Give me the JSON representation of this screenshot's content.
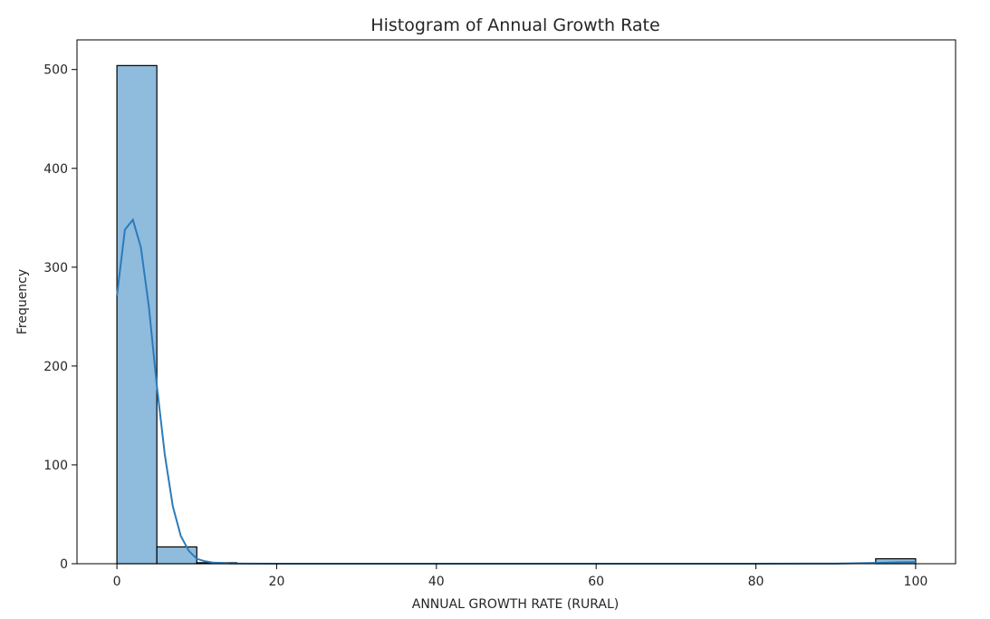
{
  "chart_data": {
    "type": "bar",
    "title": "Histogram of Annual Growth Rate",
    "xlabel": "ANNUAL GROWTH RATE (RURAL)",
    "ylabel": "Frequency",
    "xlim": [
      -5,
      105
    ],
    "ylim": [
      0,
      530
    ],
    "x_ticks": [
      "0",
      "20",
      "40",
      "60",
      "80",
      "100"
    ],
    "y_ticks": [
      "0",
      "100",
      "200",
      "300",
      "400",
      "500"
    ],
    "bins": [
      {
        "start": 0,
        "end": 5,
        "count": 504
      },
      {
        "start": 5,
        "end": 10,
        "count": 17
      },
      {
        "start": 10,
        "end": 15,
        "count": 1
      },
      {
        "start": 15,
        "end": 20,
        "count": 0
      },
      {
        "start": 20,
        "end": 25,
        "count": 0
      },
      {
        "start": 25,
        "end": 30,
        "count": 0
      },
      {
        "start": 30,
        "end": 35,
        "count": 0
      },
      {
        "start": 35,
        "end": 40,
        "count": 0
      },
      {
        "start": 40,
        "end": 45,
        "count": 0
      },
      {
        "start": 45,
        "end": 50,
        "count": 0
      },
      {
        "start": 50,
        "end": 55,
        "count": 0
      },
      {
        "start": 55,
        "end": 60,
        "count": 0
      },
      {
        "start": 60,
        "end": 65,
        "count": 0
      },
      {
        "start": 65,
        "end": 70,
        "count": 0
      },
      {
        "start": 70,
        "end": 75,
        "count": 0
      },
      {
        "start": 75,
        "end": 80,
        "count": 0
      },
      {
        "start": 80,
        "end": 85,
        "count": 0
      },
      {
        "start": 85,
        "end": 90,
        "count": 0
      },
      {
        "start": 90,
        "end": 95,
        "count": 0
      },
      {
        "start": 95,
        "end": 100,
        "count": 5
      }
    ],
    "kde": {
      "x": [
        0,
        1,
        2,
        3,
        4,
        5,
        6,
        7,
        8,
        9,
        10,
        11,
        12,
        14,
        16,
        20,
        30,
        40,
        50,
        60,
        70,
        80,
        90,
        95,
        98,
        100
      ],
      "y": [
        271,
        338,
        348,
        320,
        260,
        180,
        110,
        58,
        28,
        13,
        5,
        2.5,
        1.2,
        0.3,
        0.1,
        0.05,
        0.02,
        0.01,
        0.01,
        0.01,
        0.01,
        0.01,
        0.1,
        0.8,
        1.5,
        1.6
      ]
    },
    "grid": false,
    "colors": {
      "bar_fill": "#8fbbdd",
      "bar_edge": "#000000",
      "kde_line": "#2b7bba",
      "axes": "#000000"
    }
  }
}
